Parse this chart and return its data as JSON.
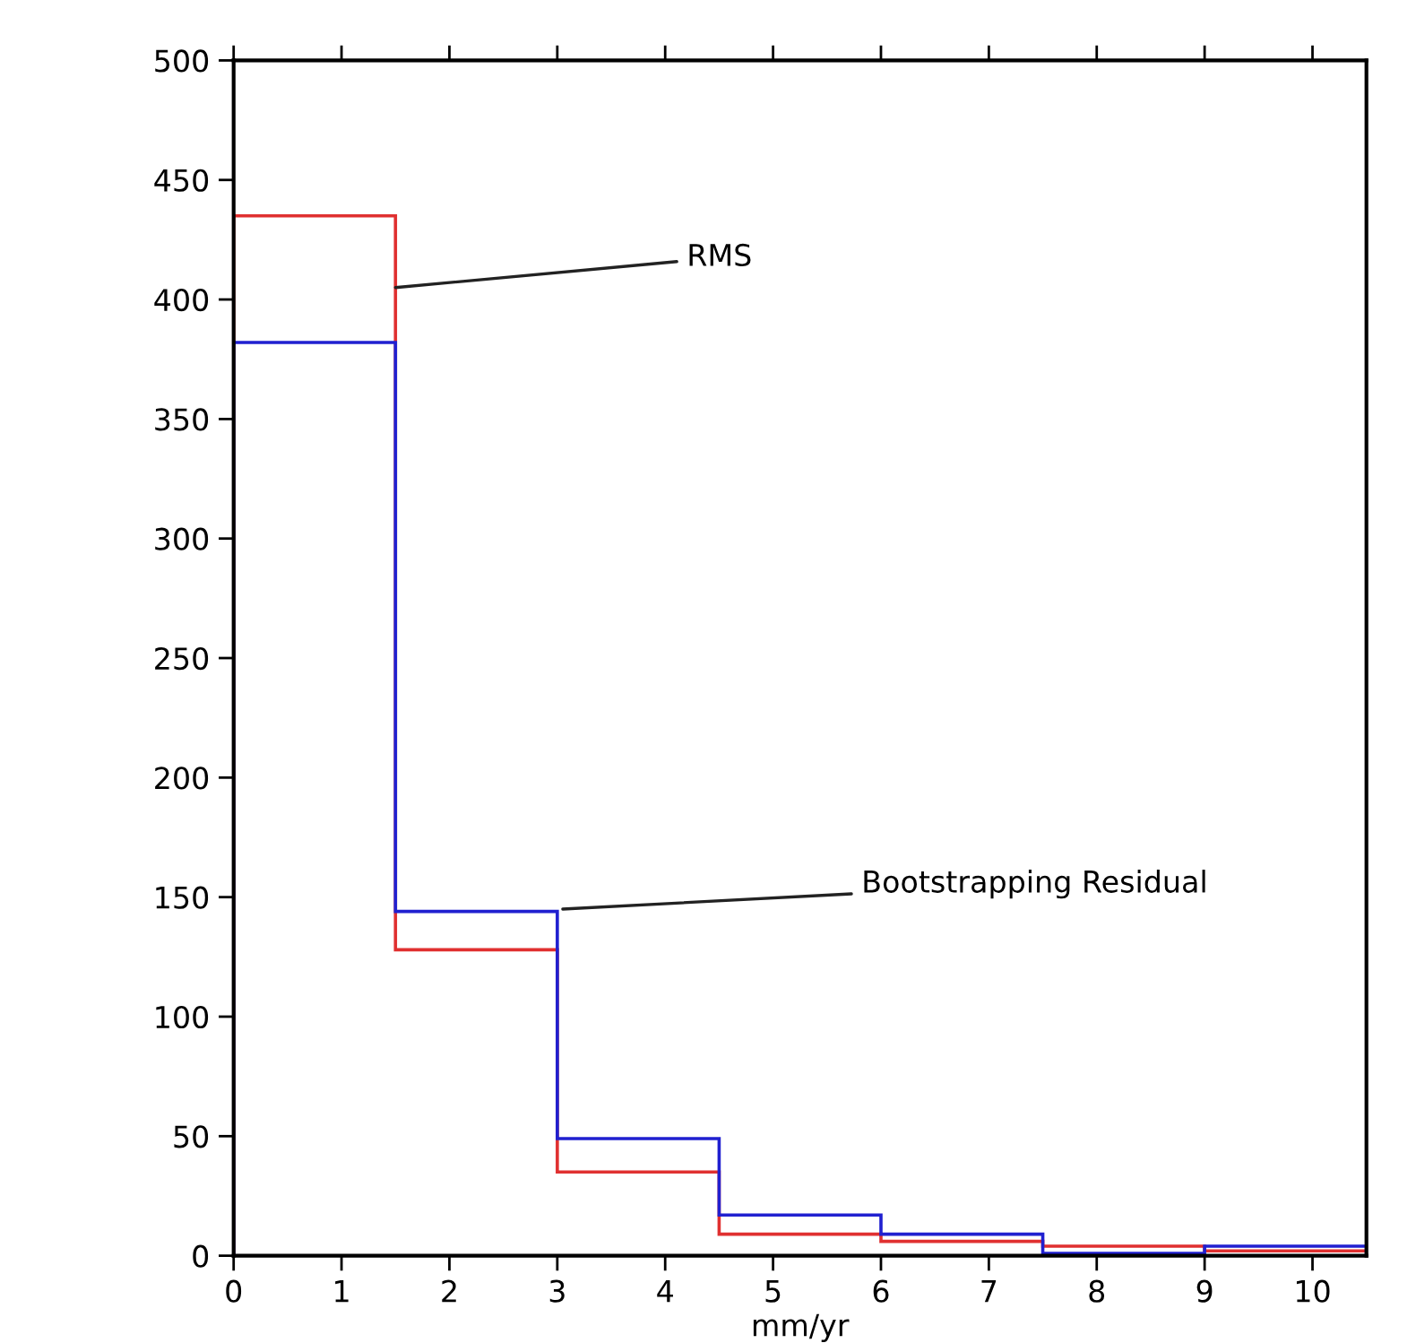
{
  "chart_data": {
    "type": "histogram",
    "xlabel": "mm/yr",
    "bins": [
      0,
      1.5,
      3,
      4.5,
      6,
      7.5,
      9,
      10.5
    ],
    "series": [
      {
        "color": "#e03030",
        "values": [
          435,
          128,
          35,
          9,
          6,
          4,
          2
        ]
      },
      {
        "color": "#2020d0",
        "values": [
          382,
          144,
          49,
          17,
          9,
          1,
          4
        ]
      }
    ],
    "xlim": [
      0,
      10.5
    ],
    "xticks": [
      0,
      1,
      2,
      3,
      4,
      5,
      6,
      7,
      8,
      9,
      10
    ],
    "ylim": [
      0,
      500
    ],
    "yticks": [
      0,
      50,
      100,
      150,
      200,
      250,
      300,
      350,
      400,
      450,
      500
    ],
    "annotations": [
      {
        "text": "RMS",
        "x": 1.5,
        "y": 405
      },
      {
        "text": "Bootstrapping Residual",
        "x": 3.05,
        "y": 145
      }
    ],
    "grid": false,
    "legend": false
  }
}
